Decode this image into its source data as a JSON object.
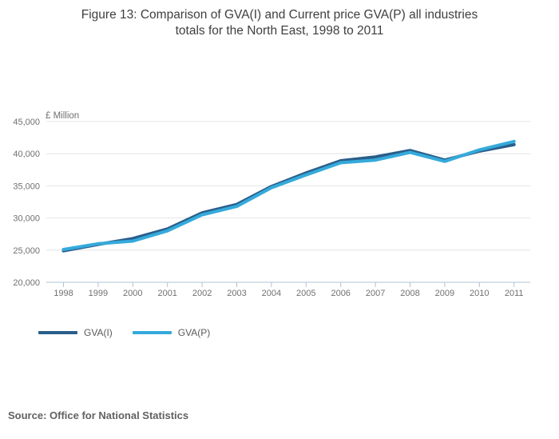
{
  "title": {
    "lines": [
      "Figure 13: Comparison of GVA(I) and Current price GVA(P) all industries",
      "totals for the North East, 1998 to 2011"
    ]
  },
  "chart_data": {
    "type": "line",
    "title": "Figure 13: Comparison of GVA(I) and Current price GVA(P) all industries totals for the North East, 1998 to 2011",
    "unit_label": "£ Million",
    "categories": [
      "1998",
      "1999",
      "2000",
      "2001",
      "2002",
      "2003",
      "2004",
      "2005",
      "2006",
      "2007",
      "2008",
      "2009",
      "2010",
      "2011"
    ],
    "series": [
      {
        "name": "GVA(I)",
        "color": "#2a5e8a",
        "values": [
          24900,
          25900,
          26800,
          28300,
          30800,
          32100,
          34900,
          37000,
          38900,
          39500,
          40500,
          39000,
          40400,
          41400
        ]
      },
      {
        "name": "GVA(P)",
        "color": "#35aadb",
        "values": [
          25100,
          26000,
          26400,
          28000,
          30500,
          31800,
          34700,
          36700,
          38600,
          39000,
          40200,
          38800,
          40600,
          41900
        ]
      }
    ],
    "ylim": [
      20000,
      45000
    ],
    "yticks": [
      {
        "value": 20000,
        "label": "20,000"
      },
      {
        "value": 25000,
        "label": "25,000"
      },
      {
        "value": 30000,
        "label": "30,000"
      },
      {
        "value": 35000,
        "label": "35,000"
      },
      {
        "value": 40000,
        "label": "40,000"
      },
      {
        "value": 45000,
        "label": "45,000"
      }
    ],
    "grid": "horizontal",
    "legend_position": "bottom-left"
  },
  "colors": {
    "grid_line": "#e4e4e4",
    "axis_line": "#aec3d5",
    "tick_label": "#707070",
    "title_text": "#3f3f3f"
  },
  "source": {
    "text": "Source: Office for National Statistics"
  }
}
